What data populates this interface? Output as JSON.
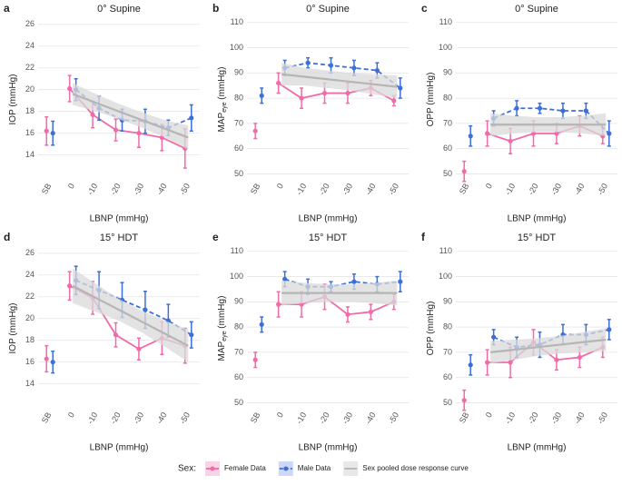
{
  "legend": {
    "title": "Sex:"
  },
  "chart_data": [
    {
      "type": "line",
      "label": "a",
      "title": "0° Supine",
      "y_label": "IOP (mmHg)",
      "x_label": "LBNP (mmHg)",
      "categories": [
        "SB",
        "0",
        "-10",
        "-20",
        "-30",
        "-40",
        "-50"
      ],
      "ylim": [
        11.8,
        26.4
      ],
      "yticks": [
        14,
        16,
        18,
        20,
        22,
        24,
        26
      ],
      "grid": true,
      "series": [
        {
          "name": "Female Data",
          "color": "#f06ba8",
          "values": [
            16.2,
            20.1,
            17.7,
            16.3,
            16.0,
            15.6,
            14.6
          ],
          "errors": [
            1.3,
            1.2,
            1.2,
            1.0,
            1.3,
            1.2,
            1.8
          ]
        },
        {
          "name": "Male Data",
          "color": "#3d6fd8",
          "values": [
            16.0,
            20.0,
            18.3,
            17.2,
            17.1,
            16.5,
            17.4
          ],
          "errors": [
            1.1,
            1.0,
            1.1,
            1.0,
            1.1,
            0.7,
            1.2
          ]
        },
        {
          "name": "Sex pooled dose response curve",
          "color": "#b5b5b5",
          "values": [
            null,
            19.6,
            18.8,
            18.0,
            17.2,
            16.4,
            15.6
          ],
          "lower": [
            null,
            18.6,
            18.0,
            17.3,
            16.5,
            15.6,
            14.5
          ],
          "upper": [
            null,
            20.6,
            19.6,
            18.7,
            17.9,
            17.2,
            16.7
          ]
        }
      ]
    },
    {
      "type": "line",
      "label": "b",
      "title": "0° Supine",
      "y_label": "MAP",
      "y_label_sub": "eye",
      "y_label_unit": "(mmHg)",
      "x_label": "LBNP (mmHg)",
      "categories": [
        "SB",
        "0",
        "-10",
        "-20",
        "-30",
        "-40",
        "-50"
      ],
      "ylim": [
        48,
        111
      ],
      "yticks": [
        50,
        60,
        70,
        80,
        90,
        100,
        110
      ],
      "grid": true,
      "series": [
        {
          "name": "Female Data",
          "color": "#f06ba8",
          "values": [
            67,
            86,
            80,
            82,
            82,
            84,
            79
          ],
          "errors": [
            3,
            4,
            4,
            4,
            4,
            3,
            2
          ]
        },
        {
          "name": "Male Data",
          "color": "#3d6fd8",
          "values": [
            81,
            92,
            94,
            93,
            92,
            91,
            84
          ],
          "errors": [
            3,
            3,
            2,
            3,
            3,
            3,
            4
          ]
        },
        {
          "name": "Sex pooled dose response curve",
          "color": "#b5b5b5",
          "values": [
            null,
            89.5,
            88.5,
            87.5,
            86.5,
            85.5,
            84.5
          ],
          "lower": [
            null,
            85,
            85,
            84,
            83,
            81.5,
            80
          ],
          "upper": [
            null,
            94,
            92,
            91,
            90,
            89.5,
            89
          ]
        }
      ]
    },
    {
      "type": "line",
      "label": "c",
      "title": "0° Supine",
      "y_label": "OPP (mmHg)",
      "x_label": "LBNP (mmHg)",
      "categories": [
        "SB",
        "0",
        "-10",
        "-20",
        "-30",
        "-40",
        "-50"
      ],
      "ylim": [
        48,
        111
      ],
      "yticks": [
        50,
        60,
        70,
        80,
        90,
        100,
        110
      ],
      "grid": true,
      "series": [
        {
          "name": "Female Data",
          "color": "#f06ba8",
          "values": [
            51,
            66,
            63,
            66,
            66,
            69,
            65
          ],
          "errors": [
            4,
            5,
            5,
            5,
            4,
            4,
            3
          ]
        },
        {
          "name": "Male Data",
          "color": "#3d6fd8",
          "values": [
            65,
            72,
            76,
            76,
            75,
            75,
            66
          ],
          "errors": [
            4,
            3,
            3,
            2,
            3,
            3,
            5
          ]
        },
        {
          "name": "Sex pooled dose response curve",
          "color": "#b5b5b5",
          "values": [
            null,
            69.5,
            69.5,
            69.5,
            69.5,
            69.5,
            69.5
          ],
          "lower": [
            null,
            65,
            66,
            66.5,
            66.5,
            66,
            65
          ],
          "upper": [
            null,
            74,
            73,
            72.5,
            72.5,
            73,
            74
          ]
        }
      ]
    },
    {
      "type": "line",
      "label": "d",
      "title": "15° HDT",
      "y_label": "IOP (mmHg)",
      "x_label": "LBNP (mmHg)",
      "categories": [
        "SB",
        "0",
        "-10",
        "-20",
        "-30",
        "-40",
        "-50"
      ],
      "ylim": [
        11.8,
        26.4
      ],
      "yticks": [
        14,
        16,
        18,
        20,
        22,
        24,
        26
      ],
      "grid": true,
      "series": [
        {
          "name": "Female Data",
          "color": "#f06ba8",
          "values": [
            16.3,
            23.0,
            21.9,
            18.5,
            17.2,
            18.2,
            17.5
          ],
          "errors": [
            1.2,
            1.3,
            1.5,
            1.1,
            1.0,
            1.5,
            1.6
          ]
        },
        {
          "name": "Male Data",
          "color": "#3d6fd8",
          "values": [
            16.0,
            23.5,
            22.6,
            21.7,
            20.8,
            19.8,
            18.5
          ],
          "errors": [
            1.0,
            1.3,
            1.7,
            1.6,
            1.7,
            1.5,
            1.2
          ]
        },
        {
          "name": "Sex pooled dose response curve",
          "color": "#b5b5b5",
          "values": [
            null,
            23.0,
            21.9,
            20.8,
            19.7,
            18.6,
            17.5
          ],
          "lower": [
            null,
            21.4,
            20.6,
            19.8,
            18.7,
            17.4,
            16.0
          ],
          "upper": [
            null,
            24.6,
            23.2,
            21.8,
            20.7,
            19.8,
            19.0
          ]
        }
      ]
    },
    {
      "type": "line",
      "label": "e",
      "title": "15° HDT",
      "y_label": "MAP",
      "y_label_sub": "eye",
      "y_label_unit": "(mmHg)",
      "x_label": "LBNP (mmHg)",
      "categories": [
        "SB",
        "0",
        "-10",
        "-20",
        "-30",
        "-40",
        "-50"
      ],
      "ylim": [
        48,
        111
      ],
      "yticks": [
        50,
        60,
        70,
        80,
        90,
        100,
        110
      ],
      "grid": true,
      "series": [
        {
          "name": "Female Data",
          "color": "#f06ba8",
          "values": [
            67,
            89,
            89,
            92,
            85,
            86,
            90
          ],
          "errors": [
            3,
            5,
            5,
            5,
            3,
            3,
            3
          ]
        },
        {
          "name": "Male Data",
          "color": "#3d6fd8",
          "values": [
            81,
            99,
            96,
            96,
            98,
            97,
            98
          ],
          "errors": [
            3,
            3,
            3,
            2,
            3,
            3,
            4
          ]
        },
        {
          "name": "Sex pooled dose response curve",
          "color": "#b5b5b5",
          "values": [
            null,
            93.5,
            93.5,
            93.5,
            93.5,
            93.5,
            93.5
          ],
          "lower": [
            null,
            88.5,
            89.5,
            90,
            90,
            89.5,
            88.5
          ],
          "upper": [
            null,
            98.5,
            97.5,
            97,
            97,
            97.5,
            98.5
          ]
        }
      ]
    },
    {
      "type": "line",
      "label": "f",
      "title": "15° HDT",
      "y_label": "OPP (mmHg)",
      "x_label": "LBNP (mmHg)",
      "categories": [
        "SB",
        "0",
        "-10",
        "-20",
        "-30",
        "-40",
        "-50"
      ],
      "ylim": [
        48,
        111
      ],
      "yticks": [
        50,
        60,
        70,
        80,
        90,
        100,
        110
      ],
      "grid": true,
      "series": [
        {
          "name": "Female Data",
          "color": "#f06ba8",
          "values": [
            51,
            66,
            66,
            74,
            67,
            68,
            72
          ],
          "errors": [
            4,
            5,
            6,
            5,
            4,
            4,
            4
          ]
        },
        {
          "name": "Male Data",
          "color": "#3d6fd8",
          "values": [
            65,
            76,
            72,
            73,
            77,
            77,
            79
          ],
          "errors": [
            4,
            3,
            4,
            5,
            4,
            4,
            4
          ]
        },
        {
          "name": "Sex pooled dose response curve",
          "color": "#b5b5b5",
          "values": [
            null,
            70,
            71,
            72,
            73,
            74,
            75
          ],
          "lower": [
            null,
            65.5,
            67,
            68.5,
            69.5,
            70,
            70.5
          ],
          "upper": [
            null,
            74.5,
            75,
            75.5,
            76.5,
            78,
            79.5
          ]
        }
      ]
    }
  ]
}
